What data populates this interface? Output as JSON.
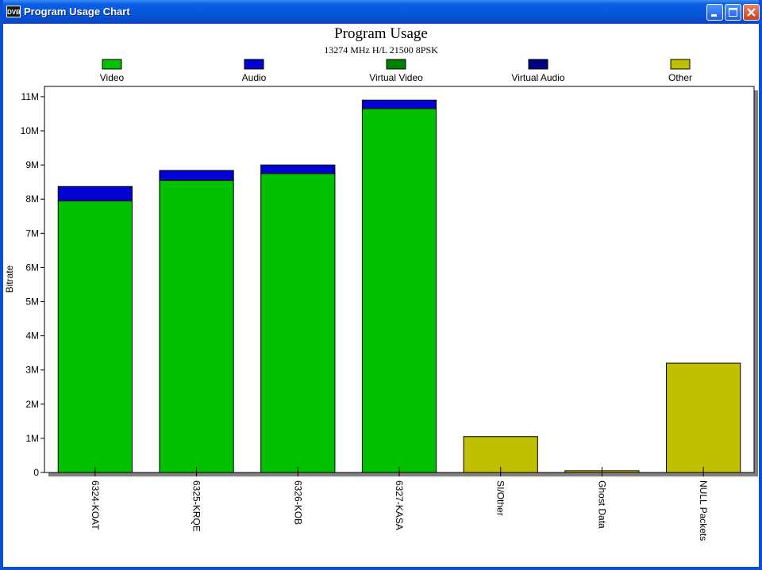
{
  "window": {
    "title": "Program Usage Chart",
    "icon_label": "DVB"
  },
  "chart_data": {
    "type": "bar",
    "stacked": true,
    "title": "Program Usage",
    "subtitle": "13274 MHz H/L 21500 8PSK",
    "xlabel": "",
    "ylabel": "Bitrate",
    "ylim": [
      0,
      11300000
    ],
    "yticks": [
      0,
      1000000,
      2000000,
      3000000,
      4000000,
      5000000,
      6000000,
      7000000,
      8000000,
      9000000,
      10000000,
      11000000
    ],
    "ytick_labels": [
      "0",
      "1M",
      "2M",
      "3M",
      "4M",
      "5M",
      "6M",
      "7M",
      "8M",
      "9M",
      "10M",
      "11M"
    ],
    "categories": [
      "6324-KOAT",
      "6325-KRQE",
      "6326-KOB",
      "6327-KASA",
      "SI/Other",
      "Ghost Data",
      "NULL Packets"
    ],
    "legend_position": "top",
    "series": [
      {
        "name": "Video",
        "color": "#00c000",
        "values": [
          7950000,
          8550000,
          8750000,
          10650000,
          0,
          0,
          0
        ]
      },
      {
        "name": "Audio",
        "color": "#0000d0",
        "values": [
          420000,
          290000,
          250000,
          250000,
          0,
          0,
          0
        ]
      },
      {
        "name": "Virtual Video",
        "color": "#008000",
        "values": [
          0,
          0,
          0,
          0,
          0,
          0,
          0
        ]
      },
      {
        "name": "Virtual Audio",
        "color": "#000080",
        "values": [
          0,
          0,
          0,
          0,
          0,
          0,
          0
        ]
      },
      {
        "name": "Other",
        "color": "#c0c000",
        "values": [
          0,
          0,
          0,
          0,
          1050000,
          50000,
          3200000
        ]
      }
    ]
  }
}
